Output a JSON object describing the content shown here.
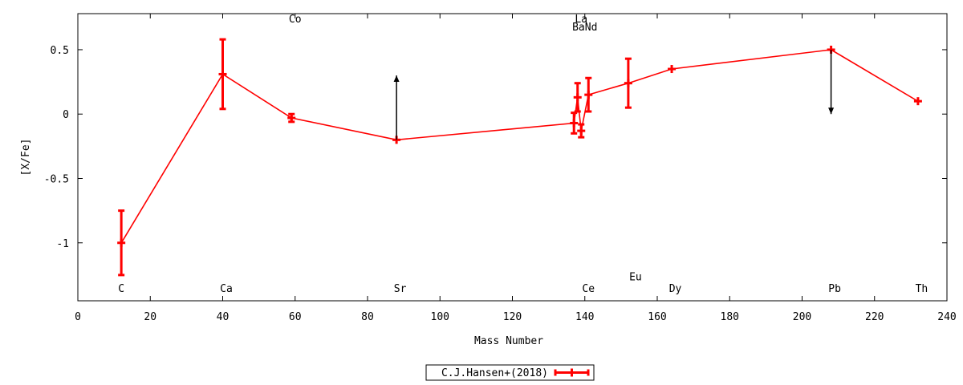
{
  "chart_data": {
    "type": "line",
    "xlabel": "Mass Number",
    "ylabel": "[X/Fe]",
    "xlim": [
      0,
      240
    ],
    "ylim": [
      -1.45,
      0.78
    ],
    "xticks": [
      0,
      20,
      40,
      60,
      80,
      100,
      120,
      140,
      160,
      180,
      200,
      220,
      240
    ],
    "yticks": [
      -1,
      -0.5,
      0,
      0.5
    ],
    "ytick_labels": [
      "-1",
      "-0.5",
      "0",
      "0.5"
    ],
    "grid": false,
    "legend_position": "bottom-center",
    "series": [
      {
        "name": "C.J.Hansen+(2018)",
        "color": "#ff0000",
        "points": [
          {
            "x": 12,
            "y": -1.0,
            "yerr": 0.25
          },
          {
            "x": 40,
            "y": 0.31,
            "yerr": 0.27
          },
          {
            "x": 59,
            "y": -0.03,
            "yerr": 0.03
          },
          {
            "x": 88,
            "y": -0.2,
            "yerr": 0
          },
          {
            "x": 137,
            "y": -0.07,
            "yerr": 0.08
          },
          {
            "x": 138,
            "y": 0.13,
            "yerr": 0.11
          },
          {
            "x": 139,
            "y": -0.13,
            "yerr": 0.05
          },
          {
            "x": 141,
            "y": 0.15,
            "yerr": 0.13
          },
          {
            "x": 152,
            "y": 0.24,
            "yerr": 0.19
          },
          {
            "x": 164,
            "y": 0.35,
            "yerr": 0
          },
          {
            "x": 208,
            "y": 0.5,
            "yerr": 0
          },
          {
            "x": 232,
            "y": 0.1,
            "yerr": 0
          }
        ]
      }
    ],
    "limit_arrows": [
      {
        "x": 88,
        "y_from": -0.2,
        "y_to": 0.3,
        "direction": "up"
      },
      {
        "x": 208,
        "y_from": 0.5,
        "y_to": 0.0,
        "direction": "down"
      }
    ],
    "element_labels": [
      {
        "text": "C",
        "x": 12,
        "y": -1.38
      },
      {
        "text": "Ca",
        "x": 41,
        "y": -1.38
      },
      {
        "text": "Co",
        "x": 60,
        "y": 0.71
      },
      {
        "text": "Sr",
        "x": 89,
        "y": -1.38
      },
      {
        "text": "La",
        "x": 139,
        "y": 0.71
      },
      {
        "text": "BaNd",
        "x": 140,
        "y": 0.65
      },
      {
        "text": "Ce",
        "x": 141,
        "y": -1.38
      },
      {
        "text": "Eu",
        "x": 154,
        "y": -1.29
      },
      {
        "text": "Dy",
        "x": 165,
        "y": -1.38
      },
      {
        "text": "Pb",
        "x": 209,
        "y": -1.38
      },
      {
        "text": "Th",
        "x": 233,
        "y": -1.38
      }
    ]
  }
}
